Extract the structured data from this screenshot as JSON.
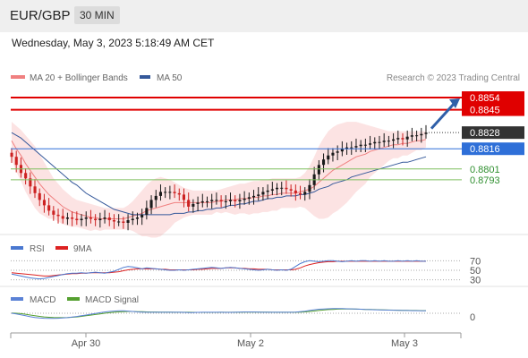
{
  "header": {
    "pair": "EUR/GBP",
    "timeframe": "30 MIN"
  },
  "datetime": "Wednesday, May 3, 2023 5:18:49 AM CET",
  "credit": "Research © 2023 Trading Central",
  "colors": {
    "resistance": "#e00000",
    "pivot": "#2e6fd8",
    "support": "#7fbf5f",
    "ma20": "#f08080",
    "ma50": "#34589a",
    "bullish_candle": "#1a1a1a",
    "bearish_candle": "#cc2222",
    "rsi": "#4a78d0",
    "rsi_ma": "#dd2222",
    "macd": "#5b82d6",
    "macd_signal": "#55a030",
    "arrow": "#2f5fa8"
  },
  "chart_data": [
    {
      "type": "candlestick",
      "title": "",
      "legend": [
        {
          "name": "MA 20 + Bollinger Bands",
          "color": "#f08080"
        },
        {
          "name": "MA 50",
          "color": "#34589a"
        }
      ],
      "levels": [
        {
          "value": 0.8854,
          "label": "0.8854",
          "kind": "resistance"
        },
        {
          "value": 0.8845,
          "label": "0.8845",
          "kind": "resistance"
        },
        {
          "value": 0.8828,
          "label": "0.8828",
          "kind": "last"
        },
        {
          "value": 0.8816,
          "label": "0.8816",
          "kind": "pivot"
        },
        {
          "value": 0.8801,
          "label": "0.8801",
          "kind": "support"
        },
        {
          "value": 0.8793,
          "label": "0.8793",
          "kind": "support"
        }
      ],
      "ylim": [
        0.8755,
        0.886
      ],
      "x_ticks": [
        "Apr 30",
        "May 2",
        "May 3"
      ],
      "close": [
        0.881,
        0.8804,
        0.8798,
        0.8794,
        0.8788,
        0.8783,
        0.8778,
        0.8774,
        0.877,
        0.8767,
        0.8766,
        0.8764,
        0.8765,
        0.8764,
        0.8763,
        0.8764,
        0.8765,
        0.8764,
        0.8763,
        0.8764,
        0.8765,
        0.8763,
        0.8762,
        0.8762,
        0.8761,
        0.8763,
        0.8764,
        0.8765,
        0.8767,
        0.8772,
        0.8778,
        0.8781,
        0.8784,
        0.8784,
        0.8784,
        0.8783,
        0.8782,
        0.8778,
        0.8773,
        0.8775,
        0.8776,
        0.8777,
        0.8777,
        0.8778,
        0.8778,
        0.8777,
        0.8777,
        0.8778,
        0.8777,
        0.8778,
        0.8779,
        0.878,
        0.8781,
        0.8782,
        0.8784,
        0.8785,
        0.8786,
        0.8787,
        0.8787,
        0.8786,
        0.8785,
        0.8783,
        0.8782,
        0.8784,
        0.8789,
        0.8797,
        0.8804,
        0.8808,
        0.8811,
        0.8813,
        0.8814,
        0.8816,
        0.8817,
        0.8817,
        0.8818,
        0.8819,
        0.8819,
        0.882,
        0.8821,
        0.8821,
        0.8822,
        0.8822,
        0.8823,
        0.8824,
        0.8823,
        0.8825,
        0.8826,
        0.8826,
        0.8827,
        0.8828
      ],
      "ma20": [
        0.8822,
        0.8816,
        0.8811,
        0.8805,
        0.88,
        0.8795,
        0.879,
        0.8786,
        0.8782,
        0.8779,
        0.8776,
        0.8773,
        0.8771,
        0.8769,
        0.8768,
        0.8767,
        0.8766,
        0.8765,
        0.8765,
        0.8764,
        0.8764,
        0.8764,
        0.8764,
        0.8764,
        0.8764,
        0.8765,
        0.8766,
        0.8767,
        0.8768,
        0.877,
        0.8771,
        0.8772,
        0.8773,
        0.8774,
        0.8775,
        0.8776,
        0.8776,
        0.8776,
        0.8776,
        0.8776,
        0.8776,
        0.8776,
        0.8776,
        0.8776,
        0.8777,
        0.8777,
        0.8778,
        0.8778,
        0.8778,
        0.8779,
        0.8779,
        0.8779,
        0.878,
        0.878,
        0.8781,
        0.8781,
        0.8782,
        0.8782,
        0.8783,
        0.8783,
        0.8783,
        0.8783,
        0.8784,
        0.8785,
        0.8786,
        0.8788,
        0.8791,
        0.8794,
        0.8797,
        0.88,
        0.8802,
        0.8804,
        0.8806,
        0.8808,
        0.881,
        0.8811,
        0.8812,
        0.8814,
        0.8815,
        0.8816,
        0.8817,
        0.8818,
        0.8819,
        0.8819,
        0.882,
        0.882,
        0.8821,
        0.8822,
        0.8822,
        0.8823
      ],
      "bb_upper": [
        0.8836,
        0.8833,
        0.883,
        0.8826,
        0.8822,
        0.8818,
        0.8812,
        0.8806,
        0.88,
        0.8794,
        0.879,
        0.8786,
        0.8783,
        0.878,
        0.8778,
        0.8777,
        0.8776,
        0.8775,
        0.8774,
        0.8773,
        0.8772,
        0.8772,
        0.8772,
        0.8772,
        0.8772,
        0.8774,
        0.8777,
        0.8781,
        0.8785,
        0.8789,
        0.8792,
        0.8794,
        0.8795,
        0.8794,
        0.8793,
        0.8791,
        0.8789,
        0.8787,
        0.8786,
        0.8785,
        0.8785,
        0.8785,
        0.8785,
        0.8785,
        0.8785,
        0.8786,
        0.8787,
        0.8788,
        0.8789,
        0.879,
        0.879,
        0.8791,
        0.8792,
        0.8792,
        0.8793,
        0.8793,
        0.8794,
        0.8794,
        0.8794,
        0.8794,
        0.8794,
        0.8794,
        0.8795,
        0.8798,
        0.8803,
        0.881,
        0.8818,
        0.8824,
        0.8829,
        0.8832,
        0.8834,
        0.8835,
        0.8836,
        0.8836,
        0.8836,
        0.8835,
        0.8834,
        0.8833,
        0.8832,
        0.8831,
        0.883,
        0.8829,
        0.8829,
        0.8829,
        0.8829,
        0.8829,
        0.8829,
        0.8829,
        0.8829,
        0.8829
      ],
      "bb_lower": [
        0.8808,
        0.8799,
        0.8792,
        0.8784,
        0.8778,
        0.8772,
        0.8768,
        0.8766,
        0.8764,
        0.8764,
        0.8762,
        0.876,
        0.8759,
        0.8758,
        0.8758,
        0.8757,
        0.8756,
        0.8755,
        0.8756,
        0.8755,
        0.8756,
        0.8756,
        0.8756,
        0.8756,
        0.8756,
        0.8756,
        0.8755,
        0.8753,
        0.8751,
        0.8751,
        0.875,
        0.875,
        0.8751,
        0.8754,
        0.8757,
        0.8761,
        0.8763,
        0.8765,
        0.8766,
        0.8767,
        0.8767,
        0.8767,
        0.8767,
        0.8767,
        0.8769,
        0.8768,
        0.8769,
        0.8768,
        0.8767,
        0.8768,
        0.8768,
        0.8767,
        0.8768,
        0.8768,
        0.8769,
        0.8769,
        0.877,
        0.877,
        0.8772,
        0.8772,
        0.8772,
        0.8772,
        0.8773,
        0.8772,
        0.8769,
        0.8766,
        0.8764,
        0.8764,
        0.8765,
        0.8768,
        0.877,
        0.8773,
        0.8776,
        0.878,
        0.8784,
        0.8787,
        0.879,
        0.8795,
        0.8798,
        0.8801,
        0.8804,
        0.8807,
        0.8809,
        0.8809,
        0.8811,
        0.8811,
        0.8813,
        0.8815,
        0.8815,
        0.8817
      ],
      "ma50": [
        0.8828,
        0.8826,
        0.8824,
        0.8821,
        0.8818,
        0.8815,
        0.8812,
        0.8809,
        0.8806,
        0.8803,
        0.88,
        0.8797,
        0.8794,
        0.8791,
        0.8789,
        0.8786,
        0.8783,
        0.8781,
        0.8779,
        0.8777,
        0.8775,
        0.8773,
        0.8771,
        0.877,
        0.8769,
        0.8768,
        0.8767,
        0.8767,
        0.8767,
        0.8767,
        0.8767,
        0.8767,
        0.8767,
        0.8767,
        0.8767,
        0.8768,
        0.8768,
        0.8768,
        0.8769,
        0.8769,
        0.877,
        0.877,
        0.8771,
        0.8771,
        0.8772,
        0.8772,
        0.8773,
        0.8774,
        0.8774,
        0.8775,
        0.8775,
        0.8776,
        0.8777,
        0.8777,
        0.8778,
        0.8779,
        0.8779,
        0.878,
        0.878,
        0.8781,
        0.8781,
        0.8781,
        0.8782,
        0.8782,
        0.8783,
        0.8784,
        0.8786,
        0.8787,
        0.8788,
        0.879,
        0.8791,
        0.8792,
        0.8793,
        0.8795,
        0.8796,
        0.8797,
        0.8798,
        0.8799,
        0.88,
        0.8801,
        0.8802,
        0.8803,
        0.8804,
        0.8805,
        0.8806,
        0.8806,
        0.8807,
        0.8808,
        0.8809,
        0.881
      ]
    },
    {
      "type": "line",
      "title": "",
      "legend": [
        {
          "name": "RSI",
          "color": "#4a78d0"
        },
        {
          "name": "9MA",
          "color": "#dd2222"
        }
      ],
      "levels": [
        70,
        50,
        30
      ],
      "ylim": [
        20,
        80
      ],
      "rsi": [
        42,
        40,
        38,
        36,
        34,
        33,
        32,
        33,
        35,
        37,
        39,
        41,
        43,
        44,
        44,
        45,
        44,
        45,
        46,
        45,
        44,
        46,
        48,
        52,
        56,
        58,
        57,
        55,
        53,
        55,
        54,
        53,
        52,
        51,
        50,
        50,
        51,
        50,
        51,
        52,
        53,
        54,
        55,
        56,
        55,
        54,
        55,
        56,
        55,
        54,
        53,
        52,
        51,
        50,
        51,
        52,
        51,
        50,
        51,
        50,
        52,
        58,
        64,
        68,
        70,
        69,
        68,
        69,
        70,
        70,
        69,
        68,
        69,
        70,
        69,
        70,
        70,
        69,
        70,
        69,
        70,
        69,
        69,
        70,
        69,
        70,
        69,
        70,
        69,
        69
      ],
      "rsi_ma": [
        45,
        44,
        43,
        42,
        41,
        40,
        39,
        38,
        38,
        39,
        40,
        41,
        42,
        43,
        43,
        44,
        44,
        45,
        45,
        45,
        45,
        45,
        46,
        47,
        49,
        51,
        52,
        53,
        53,
        53,
        53,
        53,
        52,
        52,
        51,
        51,
        51,
        51,
        51,
        51,
        52,
        52,
        53,
        54,
        54,
        54,
        55,
        55,
        55,
        54,
        54,
        53,
        53,
        52,
        52,
        52,
        51,
        51,
        51,
        51,
        51,
        52,
        55,
        59,
        62,
        64,
        66,
        67,
        68,
        68,
        69,
        69,
        69,
        69,
        69,
        69,
        69,
        69,
        69,
        69,
        69,
        69,
        69,
        69,
        69,
        69,
        69,
        69,
        69,
        69
      ]
    },
    {
      "type": "line",
      "title": "",
      "legend": [
        {
          "name": "MACD",
          "color": "#5b82d6"
        },
        {
          "name": "MACD Signal",
          "color": "#55a030"
        }
      ],
      "zero_label": "0",
      "ylim": [
        -10,
        10
      ],
      "macd": [
        0,
        -0.5,
        -1.2,
        -2,
        -2.8,
        -3.4,
        -3.8,
        -4,
        -4.1,
        -4.1,
        -4,
        -3.8,
        -3.5,
        -3.1,
        -2.6,
        -2,
        -1.4,
        -0.8,
        -0.2,
        0.4,
        1,
        1.4,
        1.7,
        1.9,
        1.9,
        1.7,
        1.4,
        1.1,
        0.9,
        0.8,
        0.8,
        0.8,
        0.8,
        0.8,
        0.8,
        0.8,
        0.8,
        0.7,
        0.6,
        0.6,
        0.7,
        0.8,
        0.8,
        0.8,
        0.8,
        0.8,
        0.7,
        0.7,
        0.8,
        0.9,
        1,
        1,
        1,
        0.9,
        0.8,
        0.8,
        0.8,
        0.8,
        0.8,
        0.8,
        0.8,
        0.9,
        1.2,
        1.6,
        2.2,
        2.8,
        3.2,
        3.4,
        3.6,
        3.7,
        3.7,
        3.7,
        3.6,
        3.5,
        3.4,
        3.2,
        3,
        2.9,
        2.8,
        2.7,
        2.6,
        2.5,
        2.4,
        2.3,
        2.2,
        2.2,
        2.1,
        2.1,
        2,
        2
      ],
      "macd_signal": [
        0.2,
        0,
        -0.3,
        -0.8,
        -1.4,
        -2,
        -2.5,
        -2.9,
        -3.2,
        -3.4,
        -3.5,
        -3.5,
        -3.4,
        -3.2,
        -2.9,
        -2.5,
        -2,
        -1.5,
        -1,
        -0.5,
        0,
        0.4,
        0.8,
        1.1,
        1.3,
        1.4,
        1.4,
        1.3,
        1.2,
        1.1,
        1,
        1,
        0.9,
        0.9,
        0.9,
        0.8,
        0.8,
        0.8,
        0.8,
        0.7,
        0.7,
        0.7,
        0.7,
        0.7,
        0.7,
        0.8,
        0.8,
        0.8,
        0.8,
        0.8,
        0.9,
        0.9,
        0.9,
        0.9,
        0.9,
        0.9,
        0.8,
        0.8,
        0.8,
        0.8,
        0.8,
        0.8,
        0.9,
        1.1,
        1.4,
        1.8,
        2.2,
        2.6,
        2.9,
        3.1,
        3.3,
        3.4,
        3.4,
        3.4,
        3.3,
        3.2,
        3.1,
        3,
        2.9,
        2.8,
        2.7,
        2.6,
        2.5,
        2.4,
        2.3,
        2.3,
        2.2,
        2.2,
        2.1,
        2.1
      ]
    }
  ]
}
